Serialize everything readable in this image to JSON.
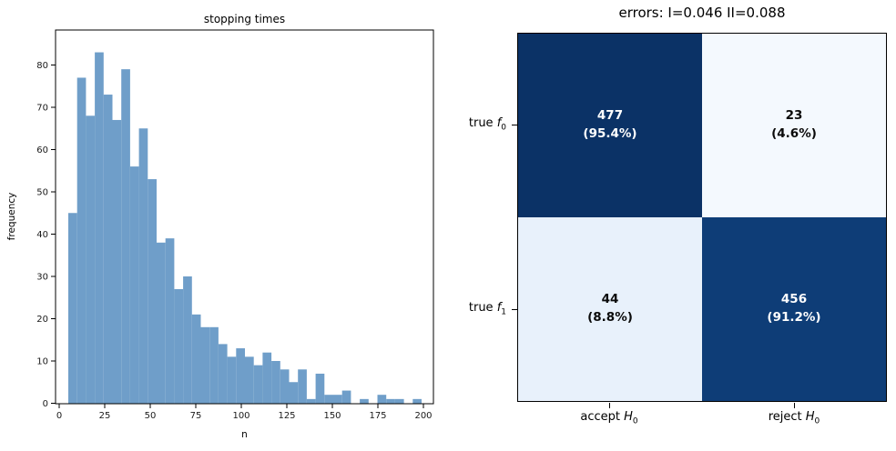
{
  "chart_data": [
    {
      "type": "bar",
      "subtype": "histogram",
      "title": "stopping times",
      "xlabel": "n",
      "ylabel": "frequency",
      "bin_start": 5,
      "bin_width": 4.85,
      "counts": [
        45,
        77,
        68,
        83,
        73,
        67,
        79,
        56,
        65,
        53,
        38,
        39,
        27,
        30,
        21,
        18,
        18,
        14,
        11,
        13,
        11,
        9,
        12,
        10,
        8,
        5,
        8,
        1,
        7,
        2,
        2,
        3,
        0,
        1,
        0,
        2,
        1,
        1,
        0,
        1
      ],
      "x_ticks": [
        0,
        25,
        50,
        75,
        100,
        125,
        150,
        175,
        200
      ],
      "y_ticks": [
        0,
        10,
        20,
        30,
        40,
        50,
        60,
        70,
        80
      ],
      "xlim": [
        -2,
        205.5
      ],
      "ylim": [
        0,
        88.3
      ],
      "grid": false,
      "bar_color": "#6f9ec9",
      "spine_color": "#000000",
      "text_color": "#1a1a1a"
    },
    {
      "type": "heatmap",
      "title": "errors: I=0.046 II=0.088",
      "rows": [
        "true f0",
        "true f1"
      ],
      "cols": [
        "accept H0",
        "reject H0"
      ],
      "values": [
        [
          477,
          23
        ],
        [
          44,
          456
        ]
      ],
      "percentages": [
        [
          "95.4%",
          "4.6%"
        ],
        [
          "8.8%",
          "91.2%"
        ]
      ],
      "colormap": "Blues",
      "legend": "none"
    }
  ],
  "matrix": {
    "title": "errors: I=0.046 II=0.088",
    "error_type_I": "0.046",
    "error_type_II": "0.088",
    "cells": [
      {
        "value": "477",
        "pct": "(95.4%)",
        "bg": "#0b3266",
        "fg": "#ffffff"
      },
      {
        "value": "23",
        "pct": "(4.6%)",
        "bg": "#f4f9fe",
        "fg": "#0a0a0a"
      },
      {
        "value": "44",
        "pct": "(8.8%)",
        "bg": "#e8f1fb",
        "fg": "#0a0a0a"
      },
      {
        "value": "456",
        "pct": "(91.2%)",
        "bg": "#0e3d77",
        "fg": "#ffffff"
      }
    ],
    "row_labels": [
      {
        "prefix": "true ",
        "sym": "f",
        "sub": "0"
      },
      {
        "prefix": "true ",
        "sym": "f",
        "sub": "1"
      }
    ],
    "col_labels": [
      {
        "prefix": "accept ",
        "sym": "H",
        "sub": "0"
      },
      {
        "prefix": "reject ",
        "sym": "H",
        "sub": "0"
      }
    ]
  }
}
